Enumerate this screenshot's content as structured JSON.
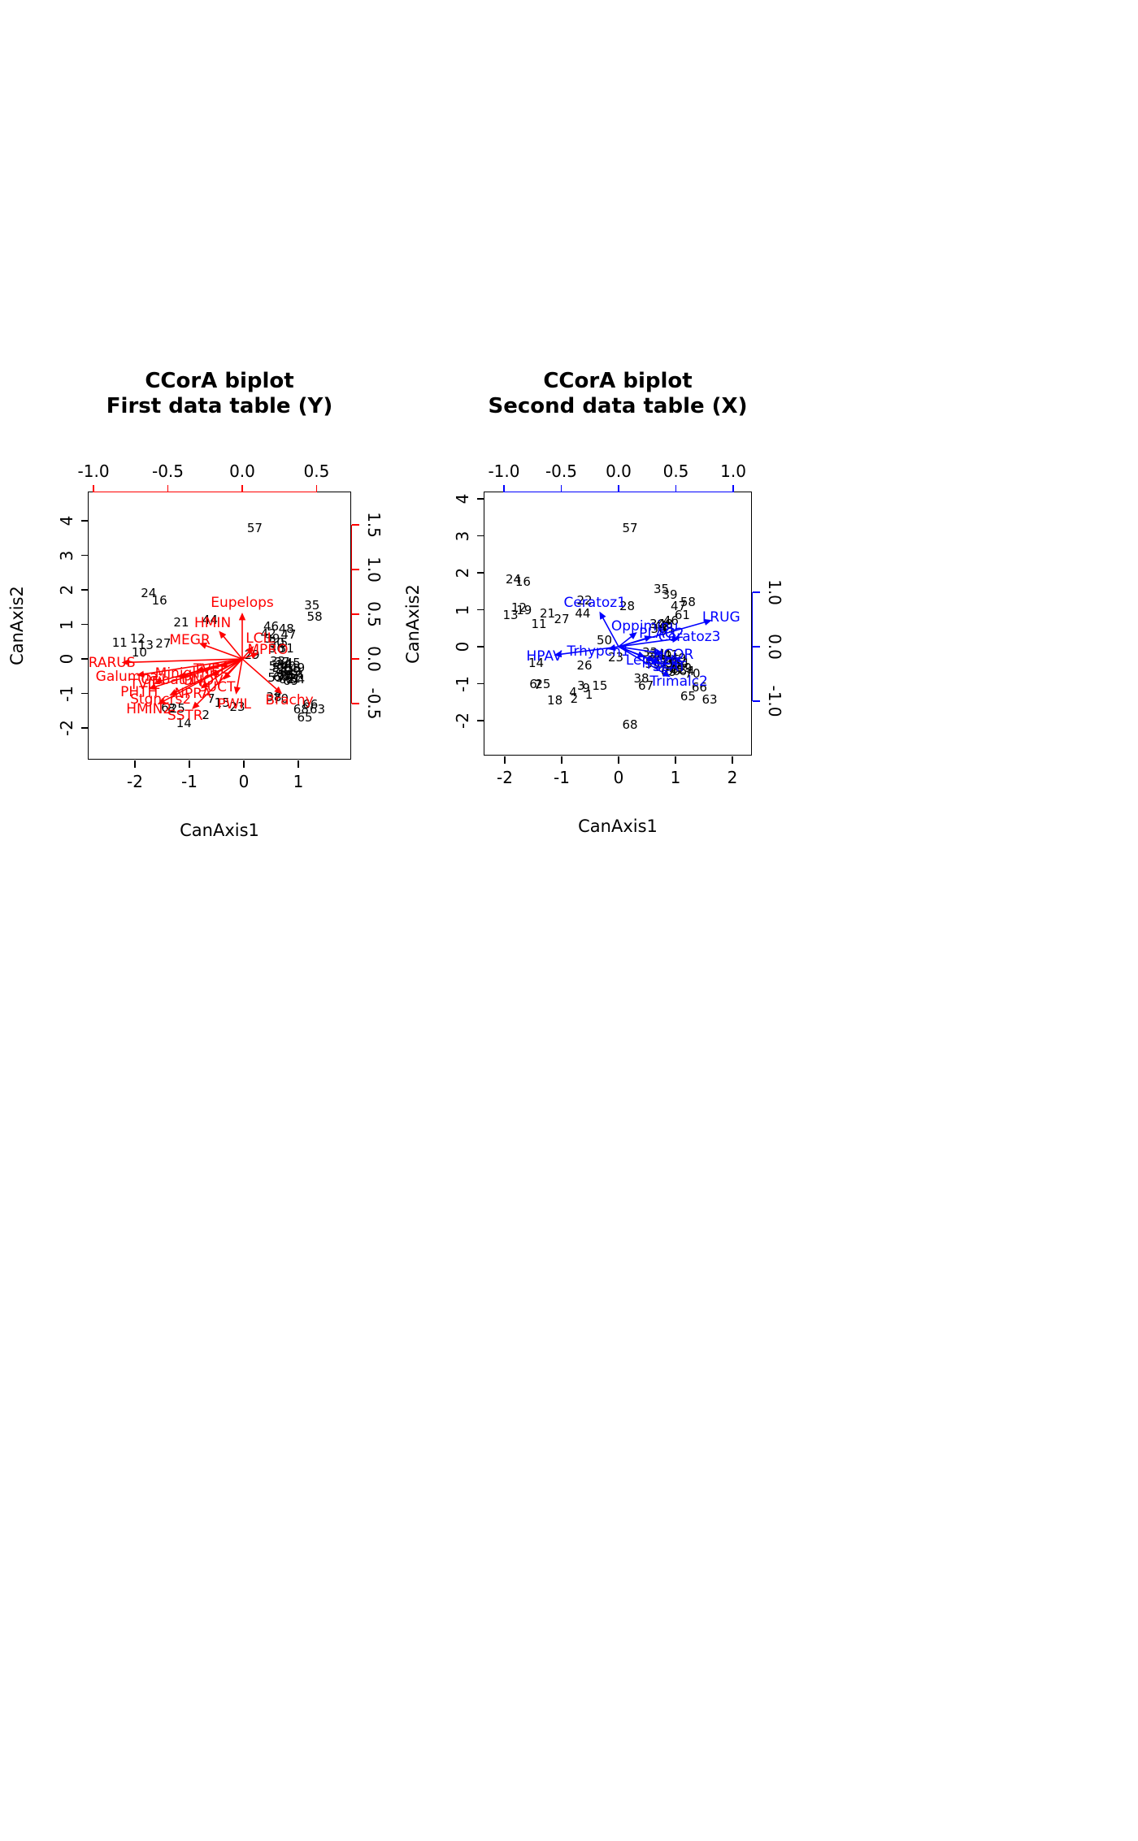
{
  "page": {
    "background": "#ffffff"
  },
  "chart_data": [
    {
      "type": "scatter",
      "subtype": "CCorA-biplot",
      "title_line1": "CCorA biplot",
      "title_line2": "First data table (Y)",
      "xlabel": "CanAxis1",
      "ylabel": "CanAxis2",
      "accent_color": "#ff0000",
      "point_color": "#000000",
      "grid": false,
      "site_axis": {
        "x_range": [
          -2.851,
          1.985
        ],
        "y_range": [
          -2.941,
          4.824
        ],
        "x_ticks": [
          {
            "v": -2,
            "label": "-2"
          },
          {
            "v": -1,
            "label": "-1"
          },
          {
            "v": 0,
            "label": "0"
          },
          {
            "v": 1,
            "label": "1"
          }
        ],
        "y_ticks": [
          {
            "v": -2,
            "label": "-2"
          },
          {
            "v": -1,
            "label": "-1"
          },
          {
            "v": 0,
            "label": "0"
          },
          {
            "v": 1,
            "label": "1"
          },
          {
            "v": 2,
            "label": "2"
          },
          {
            "v": 3,
            "label": "3"
          },
          {
            "v": 4,
            "label": "4"
          }
        ]
      },
      "corr_axis": {
        "x_range": [
          -1.033,
          0.738
        ],
        "y_range": [
          -1.136,
          1.864
        ],
        "x_ticks": [
          {
            "v": -1.0,
            "label": "-1.0"
          },
          {
            "v": -0.5,
            "label": "-0.5"
          },
          {
            "v": 0.0,
            "label": "0.0"
          },
          {
            "v": 0.5,
            "label": "0.5"
          }
        ],
        "y_ticks": [
          {
            "v": -0.5,
            "label": "-0.5"
          },
          {
            "v": 0.0,
            "label": "0.0"
          },
          {
            "v": 0.5,
            "label": "0.5"
          },
          {
            "v": 1.0,
            "label": "1.0"
          },
          {
            "v": 1.5,
            "label": "1.5"
          }
        ]
      },
      "sites": [
        [
          "57",
          0.2,
          3.8
        ],
        [
          "24",
          -1.75,
          1.9
        ],
        [
          "16",
          -1.55,
          1.7
        ],
        [
          "21",
          -1.15,
          1.05
        ],
        [
          "44",
          -0.62,
          1.12
        ],
        [
          "35",
          1.25,
          1.55
        ],
        [
          "58",
          1.3,
          1.22
        ],
        [
          "11",
          -2.28,
          0.48
        ],
        [
          "12",
          -1.95,
          0.6
        ],
        [
          "13",
          -1.8,
          0.4
        ],
        [
          "27",
          -1.48,
          0.45
        ],
        [
          "10",
          -1.92,
          0.18
        ],
        [
          "46",
          0.5,
          0.95
        ],
        [
          "48",
          0.78,
          0.88
        ],
        [
          "42",
          0.45,
          0.72
        ],
        [
          "47",
          0.82,
          0.7
        ],
        [
          "39",
          0.52,
          0.58
        ],
        [
          "30",
          0.6,
          0.46
        ],
        [
          "5",
          0.74,
          0.46
        ],
        [
          "36",
          0.6,
          0.3
        ],
        [
          "31",
          0.78,
          0.3
        ],
        [
          "29",
          0.15,
          0.12
        ],
        [
          "33",
          0.62,
          -0.08
        ],
        [
          "37",
          0.7,
          -0.1
        ],
        [
          "34",
          0.74,
          -0.16
        ],
        [
          "45",
          0.9,
          -0.12
        ],
        [
          "59",
          0.66,
          -0.26
        ],
        [
          "40",
          0.82,
          -0.2
        ],
        [
          "55",
          0.9,
          -0.28
        ],
        [
          "49",
          0.98,
          -0.26
        ],
        [
          "50",
          0.6,
          -0.22
        ],
        [
          "56",
          0.66,
          -0.4
        ],
        [
          "41",
          0.8,
          -0.36
        ],
        [
          "43",
          0.92,
          -0.38
        ],
        [
          "51",
          0.76,
          -0.46
        ],
        [
          "52",
          0.86,
          -0.48
        ],
        [
          "54",
          0.96,
          -0.46
        ],
        [
          "53",
          0.58,
          -0.54
        ],
        [
          "60",
          0.68,
          -0.52
        ],
        [
          "61",
          0.9,
          -0.56
        ],
        [
          "62",
          0.78,
          -0.58
        ],
        [
          "64",
          0.98,
          -0.58
        ],
        [
          "69",
          0.86,
          -0.64
        ],
        [
          "6",
          -1.45,
          -1.4
        ],
        [
          "8",
          -1.33,
          -1.43
        ],
        [
          "25",
          -1.22,
          -1.43
        ],
        [
          "14",
          -1.1,
          -1.85
        ],
        [
          "2",
          -0.7,
          -1.62
        ],
        [
          "23",
          -0.12,
          -1.38
        ],
        [
          "15",
          -0.4,
          -1.28
        ],
        [
          "7",
          -0.6,
          -1.15
        ],
        [
          "38",
          0.55,
          -1.1
        ],
        [
          "70",
          0.68,
          -1.16
        ],
        [
          "68",
          1.05,
          -1.46
        ],
        [
          "65",
          1.12,
          -1.7
        ],
        [
          "63",
          1.35,
          -1.46
        ],
        [
          "66",
          1.22,
          -1.32
        ]
      ],
      "vectors": [
        [
          "Eupelops",
          0.0,
          0.5
        ],
        [
          "HMIN",
          -0.15,
          0.3
        ],
        [
          "MEGR",
          -0.28,
          0.17
        ],
        [
          "LCIL",
          0.07,
          0.13
        ],
        [
          "MPRO",
          0.1,
          0.06
        ],
        [
          "TVEL",
          -0.14,
          -0.08
        ],
        [
          "RARUS",
          -0.8,
          -0.04
        ],
        [
          "Galumna",
          -0.7,
          -0.18
        ],
        [
          "TVIE",
          -0.58,
          -0.26
        ],
        [
          "Oribatl1",
          -0.42,
          -0.2
        ],
        [
          "Miniglmn",
          -0.3,
          -0.13
        ],
        [
          "ONOV",
          -0.2,
          -0.18
        ],
        [
          "SUCT",
          -0.12,
          -0.22
        ],
        [
          "NPRA",
          -0.27,
          -0.32
        ],
        [
          "PHTH",
          -0.62,
          -0.33
        ],
        [
          "Stgncrs2",
          -0.48,
          -0.4
        ],
        [
          "HMIN2",
          -0.56,
          -0.5
        ],
        [
          "SSTR",
          -0.33,
          -0.55
        ],
        [
          "PWIL",
          -0.04,
          -0.38
        ],
        [
          "Brachy",
          0.26,
          -0.38
        ]
      ]
    },
    {
      "type": "scatter",
      "subtype": "CCorA-biplot",
      "title_line1": "CCorA biplot",
      "title_line2": "Second data table (X)",
      "xlabel": "CanAxis1",
      "ylabel": "CanAxis2",
      "accent_color": "#0000ff",
      "point_color": "#000000",
      "grid": false,
      "site_axis": {
        "x_range": [
          -2.357,
          2.357
        ],
        "y_range": [
          -2.967,
          4.176
        ],
        "x_ticks": [
          {
            "v": -2,
            "label": "-2"
          },
          {
            "v": -1,
            "label": "-1"
          },
          {
            "v": 0,
            "label": "0"
          },
          {
            "v": 1,
            "label": "1"
          },
          {
            "v": 2,
            "label": "2"
          }
        ],
        "y_ticks": [
          {
            "v": -2,
            "label": "-2"
          },
          {
            "v": -1,
            "label": "-1"
          },
          {
            "v": 0,
            "label": "0"
          },
          {
            "v": 1,
            "label": "1"
          },
          {
            "v": 2,
            "label": "2"
          },
          {
            "v": 3,
            "label": "3"
          },
          {
            "v": 4,
            "label": "4"
          }
        ]
      },
      "corr_axis": {
        "x_range": [
          -1.17,
          1.17
        ],
        "y_range": [
          -2.015,
          2.836
        ],
        "x_ticks": [
          {
            "v": -1.0,
            "label": "-1.0"
          },
          {
            "v": -0.5,
            "label": "-0.5"
          },
          {
            "v": 0.0,
            "label": "0.0"
          },
          {
            "v": 0.5,
            "label": "0.5"
          },
          {
            "v": 1.0,
            "label": "1.0"
          }
        ],
        "y_ticks": [
          {
            "v": -1.0,
            "label": "-1.0"
          },
          {
            "v": 0.0,
            "label": "0.0"
          },
          {
            "v": 1.0,
            "label": "1.0"
          }
        ]
      },
      "sites": [
        [
          "57",
          0.2,
          3.2
        ],
        [
          "24",
          -1.85,
          1.82
        ],
        [
          "16",
          -1.68,
          1.76
        ],
        [
          "12",
          -1.75,
          1.05
        ],
        [
          "19",
          -1.66,
          0.98
        ],
        [
          "13",
          -1.9,
          0.85
        ],
        [
          "21",
          -1.25,
          0.9
        ],
        [
          "27",
          -1.0,
          0.75
        ],
        [
          "11",
          -1.4,
          0.62
        ],
        [
          "44",
          -0.63,
          0.9
        ],
        [
          "22",
          -0.6,
          1.25
        ],
        [
          "28",
          0.15,
          1.1
        ],
        [
          "35",
          0.75,
          1.55
        ],
        [
          "39",
          0.9,
          1.4
        ],
        [
          "47",
          1.05,
          1.1
        ],
        [
          "58",
          1.22,
          1.2
        ],
        [
          "61",
          1.12,
          0.85
        ],
        [
          "30",
          0.68,
          0.62
        ],
        [
          "48",
          0.82,
          0.62
        ],
        [
          "42",
          0.75,
          0.55
        ],
        [
          "36",
          0.7,
          0.48
        ],
        [
          "31",
          0.86,
          0.5
        ],
        [
          "5",
          0.78,
          0.42
        ],
        [
          "46",
          0.92,
          0.7
        ],
        [
          "50",
          -0.25,
          0.18
        ],
        [
          "23",
          -0.05,
          -0.28
        ],
        [
          "26",
          -0.6,
          -0.5
        ],
        [
          "14",
          -1.45,
          -0.45
        ],
        [
          "6",
          -1.5,
          -1.0
        ],
        [
          "7",
          -1.42,
          -1.04
        ],
        [
          "25",
          -1.33,
          -1.02
        ],
        [
          "18",
          -1.12,
          -1.45
        ],
        [
          "4",
          -0.8,
          -1.22
        ],
        [
          "2",
          -0.78,
          -1.4
        ],
        [
          "1",
          -0.52,
          -1.3
        ],
        [
          "3",
          -0.66,
          -1.06
        ],
        [
          "9",
          -0.57,
          -1.12
        ],
        [
          "15",
          -0.33,
          -1.05
        ],
        [
          "67",
          0.48,
          -1.05
        ],
        [
          "38",
          0.4,
          -0.85
        ],
        [
          "70",
          1.3,
          -0.72
        ],
        [
          "66",
          1.42,
          -1.1
        ],
        [
          "65",
          1.22,
          -1.35
        ],
        [
          "63",
          1.6,
          -1.42
        ],
        [
          "68",
          0.2,
          -2.1
        ],
        [
          "33",
          0.55,
          -0.15
        ],
        [
          "37",
          0.62,
          -0.28
        ],
        [
          "34",
          0.68,
          -0.2
        ],
        [
          "40",
          0.8,
          -0.25
        ],
        [
          "41",
          0.92,
          -0.22
        ],
        [
          "43",
          0.7,
          -0.36
        ],
        [
          "45",
          0.95,
          -0.35
        ],
        [
          "49",
          1.05,
          -0.3
        ],
        [
          "51",
          0.85,
          -0.45
        ],
        [
          "52",
          1.0,
          -0.48
        ],
        [
          "53",
          0.6,
          -0.46
        ],
        [
          "54",
          1.1,
          -0.45
        ],
        [
          "55",
          0.9,
          -0.55
        ],
        [
          "56",
          0.75,
          -0.56
        ],
        [
          "59",
          1.15,
          -0.58
        ],
        [
          "60",
          0.95,
          -0.65
        ],
        [
          "62",
          1.05,
          -0.62
        ],
        [
          "64",
          1.2,
          -0.66
        ],
        [
          "69",
          0.88,
          -0.68
        ]
      ],
      "vectors": [
        [
          "Ceratoz1",
          -0.16,
          0.62
        ],
        [
          "LRUG",
          0.8,
          0.48
        ],
        [
          "Ceratoz3",
          0.52,
          0.15
        ],
        [
          "Oppiminu",
          0.15,
          0.25
        ],
        [
          "PLAG2",
          0.28,
          0.18
        ],
        [
          "Trhypch1",
          -0.08,
          -0.04
        ],
        [
          "HPAV",
          -0.55,
          -0.15
        ],
        [
          "NCOR",
          0.38,
          -0.12
        ],
        [
          "Lepidzts",
          0.22,
          -0.18
        ],
        [
          "FSET",
          0.3,
          -0.25
        ],
        [
          "SLAT",
          0.35,
          -0.3
        ],
        [
          "Trimalc2",
          0.44,
          -0.54
        ]
      ]
    }
  ]
}
